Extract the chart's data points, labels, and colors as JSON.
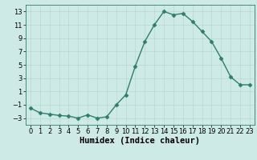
{
  "x": [
    0,
    1,
    2,
    3,
    4,
    5,
    6,
    7,
    8,
    9,
    10,
    11,
    12,
    13,
    14,
    15,
    16,
    17,
    18,
    19,
    20,
    21,
    22,
    23
  ],
  "y": [
    -1.5,
    -2.2,
    -2.4,
    -2.6,
    -2.7,
    -3.0,
    -2.5,
    -3.0,
    -2.8,
    -1.0,
    0.5,
    4.8,
    8.5,
    11.0,
    13.0,
    12.5,
    12.7,
    11.5,
    10.0,
    8.5,
    6.0,
    3.2,
    2.0,
    2.0
  ],
  "xlabel": "Humidex (Indice chaleur)",
  "ylim": [
    -4,
    14
  ],
  "xlim": [
    -0.5,
    23.5
  ],
  "yticks": [
    -3,
    -1,
    1,
    3,
    5,
    7,
    9,
    11,
    13
  ],
  "xticks": [
    0,
    1,
    2,
    3,
    4,
    5,
    6,
    7,
    8,
    9,
    10,
    11,
    12,
    13,
    14,
    15,
    16,
    17,
    18,
    19,
    20,
    21,
    22,
    23
  ],
  "line_color": "#2e7d6e",
  "marker": "D",
  "marker_size": 2.5,
  "bg_color": "#ceeae6",
  "grid_color": "#b8d8d4",
  "tick_fontsize": 6,
  "xlabel_fontsize": 7.5,
  "line_width": 1.0
}
